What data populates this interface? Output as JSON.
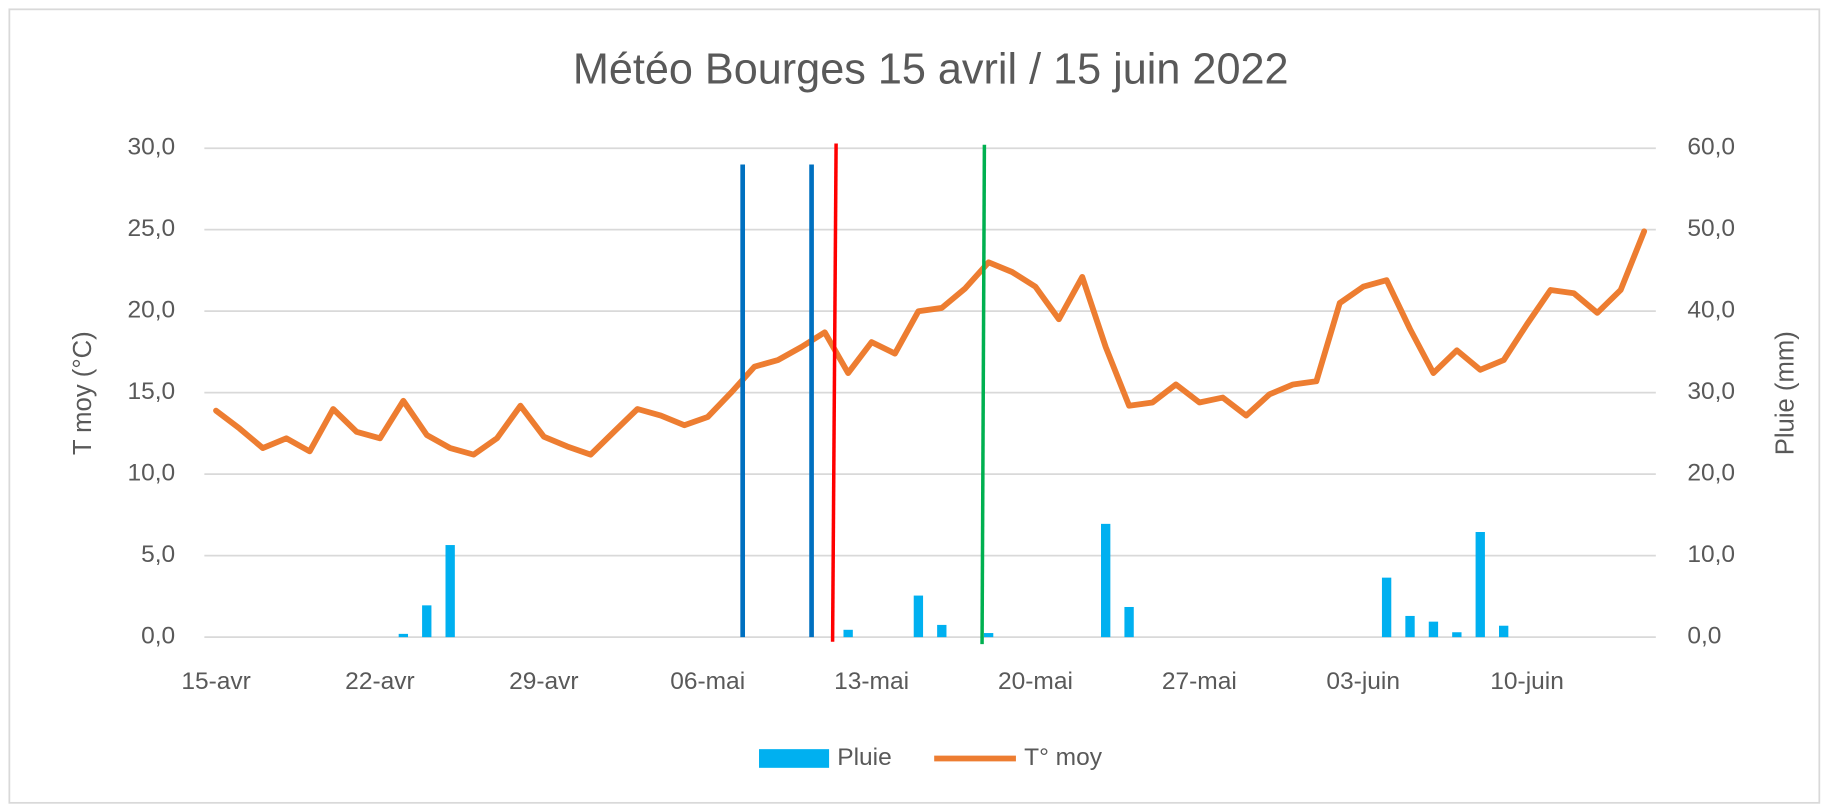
{
  "chart_data": {
    "type": "bar",
    "title": "Météo Bourges 15 avril / 15 juin 2022",
    "y_label": "T moy (°C)",
    "y2_label": "Pluie (mm)",
    "categories": [
      "15-avr",
      null,
      null,
      null,
      null,
      null,
      null,
      "22-avr",
      null,
      null,
      null,
      null,
      null,
      null,
      "29-avr",
      null,
      null,
      null,
      null,
      null,
      null,
      "06-mai",
      null,
      null,
      null,
      null,
      null,
      null,
      "13-mai",
      null,
      null,
      null,
      null,
      null,
      null,
      "20-mai",
      null,
      null,
      null,
      null,
      null,
      null,
      "27-mai",
      null,
      null,
      null,
      null,
      null,
      null,
      "03-juin",
      null,
      null,
      null,
      null,
      null,
      null,
      "10-juin",
      null,
      null,
      null,
      null,
      null
    ],
    "series": [
      {
        "name": "Pluie",
        "type": "bar",
        "axis": "y2",
        "color": "#00b0f0",
        "values": [
          0,
          0,
          0,
          0,
          0,
          0,
          0,
          0,
          0.4,
          3.9,
          11.3,
          0,
          0,
          0,
          0,
          0,
          0,
          0,
          0,
          0,
          0,
          0,
          0,
          0,
          0,
          0,
          0,
          0.9,
          0,
          0,
          5.1,
          1.5,
          0,
          0.5,
          0,
          0,
          0,
          0,
          13.9,
          3.7,
          0,
          0,
          0,
          0,
          0,
          0,
          0,
          0,
          0,
          0,
          7.3,
          2.6,
          1.9,
          0.6,
          12.9,
          1.4,
          0,
          0,
          0,
          0,
          0,
          0
        ]
      },
      {
        "name": "T° moy",
        "type": "line",
        "axis": "y",
        "color": "#ed7d31",
        "values": [
          13.9,
          12.8,
          11.6,
          12.2,
          11.4,
          14.0,
          12.6,
          12.2,
          14.5,
          12.4,
          11.6,
          11.2,
          12.2,
          14.2,
          12.3,
          11.7,
          11.2,
          12.6,
          14.0,
          13.6,
          13.0,
          13.5,
          15.0,
          16.6,
          17.0,
          17.8,
          18.7,
          16.2,
          18.1,
          17.4,
          20.0,
          20.2,
          21.4,
          23.0,
          22.4,
          21.5,
          19.5,
          22.1,
          17.8,
          14.2,
          14.4,
          15.5,
          14.4,
          14.7,
          13.6,
          14.9,
          15.5,
          15.7,
          20.5,
          21.5,
          21.9,
          18.9,
          16.2,
          17.6,
          16.4,
          17.0,
          19.2,
          21.3,
          21.1,
          19.9,
          21.3,
          24.9
        ]
      }
    ],
    "ylim": [
      0,
      30
    ],
    "yticks": [
      {
        "value": 0,
        "label": "0,0"
      },
      {
        "value": 5,
        "label": "5,0"
      },
      {
        "value": 10,
        "label": "10,0"
      },
      {
        "value": 15,
        "label": "15,0"
      },
      {
        "value": 20,
        "label": "20,0"
      },
      {
        "value": 25,
        "label": "25,0"
      },
      {
        "value": 30,
        "label": "30,0"
      }
    ],
    "y2lim": [
      0,
      60
    ],
    "y2ticks": [
      {
        "value": 0,
        "label": "0,0"
      },
      {
        "value": 10,
        "label": "10,0"
      },
      {
        "value": 20,
        "label": "20,0"
      },
      {
        "value": 30,
        "label": "30,0"
      },
      {
        "value": 40,
        "label": "40,0"
      },
      {
        "value": 50,
        "label": "50,0"
      },
      {
        "value": 60,
        "label": "60,0"
      }
    ],
    "grid": true,
    "legend": "bottom"
  }
}
